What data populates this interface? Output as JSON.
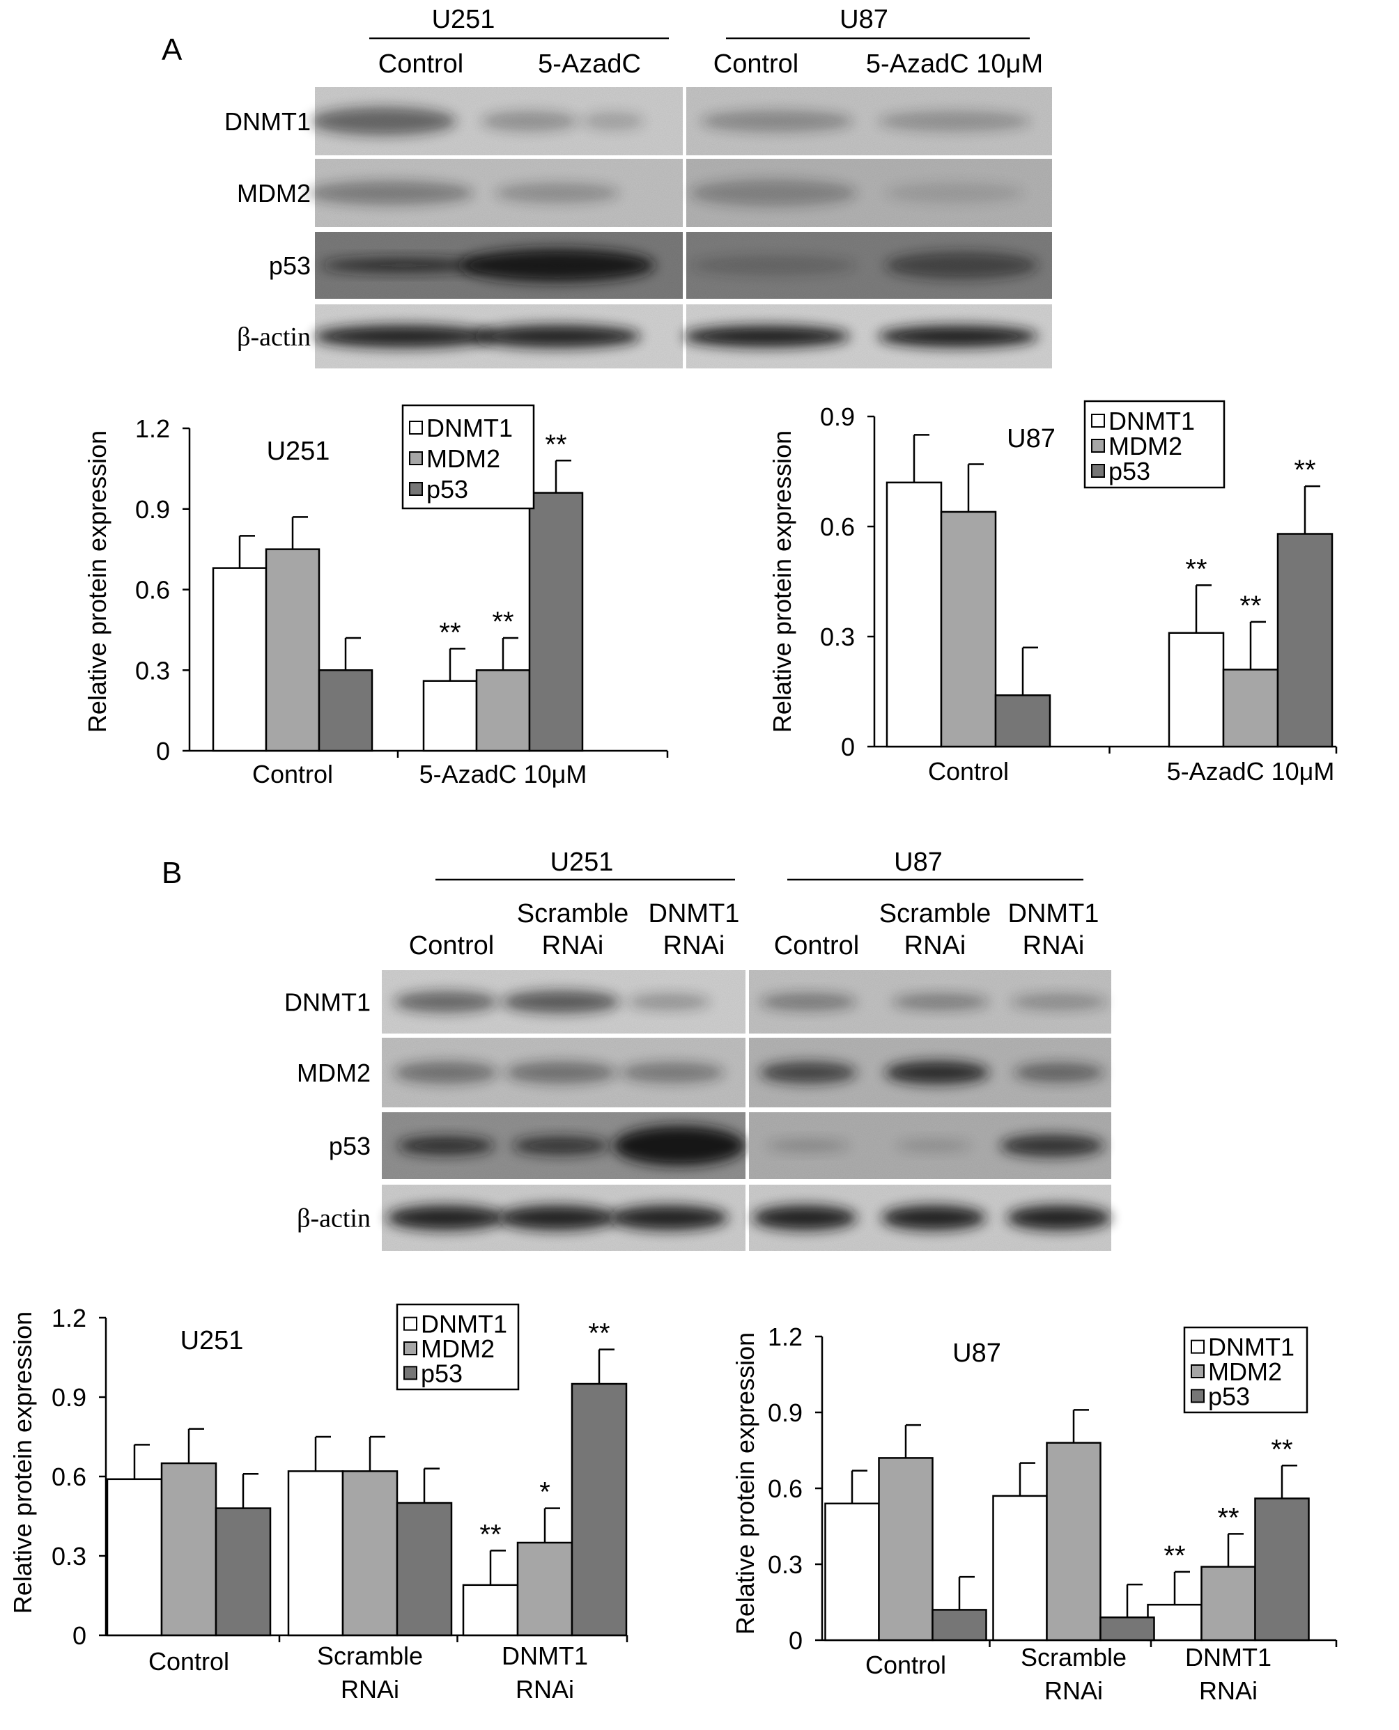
{
  "panels": {
    "a": {
      "letter": "A"
    },
    "b": {
      "letter": "B"
    }
  },
  "blot_a": {
    "cell_lines": [
      "U251",
      "U87"
    ],
    "lanes": [
      {
        "label": [
          "Control"
        ]
      },
      {
        "label": [
          "5-AzadC"
        ]
      },
      {
        "label": [
          "Control"
        ]
      },
      {
        "label": [
          "5-AzadC 10μM"
        ]
      }
    ],
    "rows": [
      "DNMT1",
      "MDM2",
      "p53",
      "β-actin"
    ]
  },
  "blot_b": {
    "cell_lines": [
      "U251",
      "U87"
    ],
    "lanes": [
      {
        "label": [
          "Control"
        ]
      },
      {
        "label": [
          "Scramble",
          "RNAi"
        ]
      },
      {
        "label": [
          "DNMT1",
          "RNAi"
        ]
      },
      {
        "label": [
          "Control"
        ]
      },
      {
        "label": [
          "Scramble",
          "RNAi"
        ]
      },
      {
        "label": [
          "DNMT1",
          "RNAi"
        ]
      }
    ],
    "rows": [
      "DNMT1",
      "MDM2",
      "p53",
      "β-actin"
    ]
  },
  "colors": {
    "DNMT1": "#ffffff",
    "MDM2": "#a6a6a6",
    "p53": "#767676"
  },
  "chart_data": [
    {
      "id": "a-u251",
      "type": "bar",
      "title": "U251",
      "ylabel": "Relative protein expression",
      "ylim": [
        0,
        1.2
      ],
      "yticks": [
        "0",
        "0.3",
        "0.6",
        "0.9",
        "1.2"
      ],
      "categories": [
        [
          "Control"
        ],
        [
          "5-AzadC 10μM"
        ]
      ],
      "series": [
        {
          "name": "DNMT1",
          "values": [
            0.68,
            0.26
          ],
          "errors": [
            0.12,
            0.12
          ],
          "sig": [
            "",
            "**"
          ]
        },
        {
          "name": "MDM2",
          "values": [
            0.75,
            0.3
          ],
          "errors": [
            0.12,
            0.12
          ],
          "sig": [
            "",
            "**"
          ]
        },
        {
          "name": "p53",
          "values": [
            0.3,
            0.96
          ],
          "errors": [
            0.12,
            0.12
          ],
          "sig": [
            "",
            "**"
          ]
        }
      ],
      "legend": "top-right"
    },
    {
      "id": "a-u87",
      "type": "bar",
      "title": "U87",
      "ylabel": "Relative protein expression",
      "ylim": [
        0,
        0.9
      ],
      "yticks": [
        "0",
        "0.3",
        "0.6",
        "0.9"
      ],
      "categories": [
        [
          "Control"
        ],
        [
          "5-AzadC 10μM"
        ]
      ],
      "series": [
        {
          "name": "DNMT1",
          "values": [
            0.72,
            0.31
          ],
          "errors": [
            0.13,
            0.13
          ],
          "sig": [
            "",
            "**"
          ]
        },
        {
          "name": "MDM2",
          "values": [
            0.64,
            0.21
          ],
          "errors": [
            0.13,
            0.13
          ],
          "sig": [
            "",
            "**"
          ]
        },
        {
          "name": "p53",
          "values": [
            0.14,
            0.58
          ],
          "errors": [
            0.13,
            0.13
          ],
          "sig": [
            "",
            "**"
          ]
        }
      ],
      "legend": "top-right"
    },
    {
      "id": "b-u251",
      "type": "bar",
      "title": "U251",
      "ylabel": "Relative protein expression",
      "ylim": [
        0,
        1.2
      ],
      "yticks": [
        "0",
        "0.3",
        "0.6",
        "0.9",
        "1.2"
      ],
      "categories": [
        [
          "Control"
        ],
        [
          "Scramble",
          "RNAi"
        ],
        [
          "DNMT1",
          "RNAi"
        ]
      ],
      "series": [
        {
          "name": "DNMT1",
          "values": [
            0.59,
            0.62,
            0.19
          ],
          "errors": [
            0.13,
            0.13,
            0.13
          ],
          "sig": [
            "",
            "",
            "**"
          ]
        },
        {
          "name": "MDM2",
          "values": [
            0.65,
            0.62,
            0.35
          ],
          "errors": [
            0.13,
            0.13,
            0.13
          ],
          "sig": [
            "",
            "",
            "*"
          ]
        },
        {
          "name": "p53",
          "values": [
            0.48,
            0.5,
            0.95
          ],
          "errors": [
            0.13,
            0.13,
            0.13
          ],
          "sig": [
            "",
            "",
            "**"
          ]
        }
      ],
      "legend": "top-right"
    },
    {
      "id": "b-u87",
      "type": "bar",
      "title": "U87",
      "ylabel": "Relative protein expression",
      "ylim": [
        0,
        1.2
      ],
      "yticks": [
        "0",
        "0.3",
        "0.6",
        "0.9",
        "1.2"
      ],
      "categories": [
        [
          "Control"
        ],
        [
          "Scramble",
          "RNAi"
        ],
        [
          "DNMT1",
          "RNAi"
        ]
      ],
      "series": [
        {
          "name": "DNMT1",
          "values": [
            0.54,
            0.57,
            0.14
          ],
          "errors": [
            0.13,
            0.13,
            0.13
          ],
          "sig": [
            "",
            "",
            "**"
          ]
        },
        {
          "name": "MDM2",
          "values": [
            0.72,
            0.78,
            0.29
          ],
          "errors": [
            0.13,
            0.13,
            0.13
          ],
          "sig": [
            "",
            "",
            "**"
          ]
        },
        {
          "name": "p53",
          "values": [
            0.12,
            0.09,
            0.56
          ],
          "errors": [
            0.13,
            0.13,
            0.13
          ],
          "sig": [
            "",
            "",
            "**"
          ]
        }
      ],
      "legend": "top-right"
    }
  ]
}
